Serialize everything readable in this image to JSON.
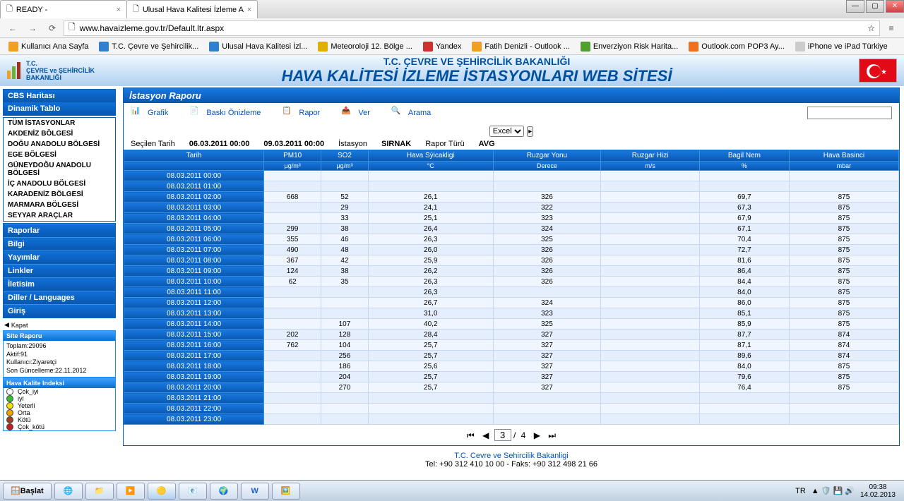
{
  "tabs": [
    {
      "title": "READY -"
    },
    {
      "title": "Ulusal Hava Kalitesi İzleme A"
    }
  ],
  "url": "www.havaizleme.gov.tr/Default.ltr.aspx",
  "bookmarks": [
    {
      "label": "Kullanıcı Ana Sayfa",
      "color": "#f0a020"
    },
    {
      "label": "T.C. Çevre ve Şehircilik...",
      "color": "#3080d0"
    },
    {
      "label": "Ulusal Hava Kalitesi İzl...",
      "color": "#3080d0"
    },
    {
      "label": "Meteoroloji 12. Bölge ...",
      "color": "#e0b000"
    },
    {
      "label": "Yandex",
      "color": "#d03030"
    },
    {
      "label": "Fatih Denizli - Outlook ...",
      "color": "#f0a020"
    },
    {
      "label": "Enverziyon Risk Harita...",
      "color": "#50a030"
    },
    {
      "label": "Outlook.com POP3 Ay...",
      "color": "#f07020"
    },
    {
      "label": "iPhone ve iPad Türkiye",
      "color": "#ccc"
    }
  ],
  "header": {
    "line1": "T.C. ÇEVRE VE ŞEHİRCİLİK BAKANLIĞI",
    "line2": "HAVA KALİTESİ İZLEME İSTASYONLARI WEB SİTESİ",
    "logo_text": "T.C.\nÇEVRE ve ŞEHİRCİLİK\nBAKANLIĞI"
  },
  "sidebar": {
    "blue1": [
      "CBS Haritası",
      "Dinamik Tablo"
    ],
    "white1": [
      "TÜM İSTASYONLAR",
      "AKDENİZ BÖLGESİ",
      "DOĞU ANADOLU BÖLGESİ",
      "EGE BÖLGESİ",
      "GÜNEYDOĞU ANADOLU BÖLGESİ",
      "İÇ ANADOLU BÖLGESİ",
      "KARADENİZ BÖLGESİ",
      "MARMARA BÖLGESİ",
      "SEYYAR ARAÇLAR"
    ],
    "blue2": [
      "Raporlar",
      "Bilgi",
      "Yayımlar",
      "Linkler",
      "İletisim",
      "Diller / Languages",
      "Giriş"
    ],
    "kapat": "Kapat",
    "report_h": "Site Raporu",
    "report_b": [
      "Toplam:29096",
      "Aktif:91",
      "Kullanıcı:Ziyaretçi",
      "Son Güncelleme:22.11.2012"
    ],
    "legend_h": "Hava Kalite Indeksi",
    "legend": [
      {
        "label": "Çok_iyi",
        "color": "#ffffff"
      },
      {
        "label": "iyi",
        "color": "#30c030"
      },
      {
        "label": "Yeterli",
        "color": "#f0e000"
      },
      {
        "label": "Orta",
        "color": "#f0a000"
      },
      {
        "label": "Kötü",
        "color": "#a04020"
      },
      {
        "label": "Çok_kötü",
        "color": "#c02020"
      }
    ]
  },
  "panel": {
    "title": "İstasyon Raporu",
    "toolbar": {
      "grafik": "Grafik",
      "baski": "Baskı Önizleme",
      "rapor": "Rapor",
      "ver": "Ver",
      "arama": "Arama",
      "export": "Excel"
    },
    "params": {
      "secilen_label": "Seçilen Tarih",
      "d1": "06.03.2011 00:00",
      "d2": "09.03.2011 00:00",
      "istasyon_label": "İstasyon",
      "istasyon": "SIRNAK",
      "rapor_label": "Rapor Türü",
      "rapor": "AVG"
    },
    "columns": [
      {
        "h": "Tarih",
        "u": ""
      },
      {
        "h": "PM10",
        "u": "µg/m³"
      },
      {
        "h": "SO2",
        "u": "µg/m³"
      },
      {
        "h": "Hava Sýicakligi",
        "u": "°C"
      },
      {
        "h": "Ruzgar Yonu",
        "u": "Derece"
      },
      {
        "h": "Ruzgar Hizi",
        "u": "m/s"
      },
      {
        "h": "Bagil Nem",
        "u": "%"
      },
      {
        "h": "Hava Basinci",
        "u": "mbar"
      }
    ],
    "rows": [
      [
        "08.03.2011 00:00",
        "",
        "",
        "",
        "",
        "",
        "",
        ""
      ],
      [
        "08.03.2011 01:00",
        "",
        "",
        "",
        "",
        "",
        "",
        ""
      ],
      [
        "08.03.2011 02:00",
        "668",
        "52",
        "26,1",
        "326",
        "",
        "69,7",
        "875"
      ],
      [
        "08.03.2011 03:00",
        "",
        "29",
        "24,1",
        "322",
        "",
        "67,3",
        "875"
      ],
      [
        "08.03.2011 04:00",
        "",
        "33",
        "25,1",
        "323",
        "",
        "67,9",
        "875"
      ],
      [
        "08.03.2011 05:00",
        "299",
        "38",
        "26,4",
        "324",
        "",
        "67,1",
        "875"
      ],
      [
        "08.03.2011 06:00",
        "355",
        "46",
        "26,3",
        "325",
        "",
        "70,4",
        "875"
      ],
      [
        "08.03.2011 07:00",
        "490",
        "48",
        "26,0",
        "326",
        "",
        "72,7",
        "875"
      ],
      [
        "08.03.2011 08:00",
        "367",
        "42",
        "25,9",
        "326",
        "",
        "81,6",
        "875"
      ],
      [
        "08.03.2011 09:00",
        "124",
        "38",
        "26,2",
        "326",
        "",
        "86,4",
        "875"
      ],
      [
        "08.03.2011 10:00",
        "62",
        "35",
        "26,3",
        "326",
        "",
        "84,4",
        "875"
      ],
      [
        "08.03.2011 11:00",
        "",
        "",
        "26,3",
        "",
        "",
        "84,0",
        "875"
      ],
      [
        "08.03.2011 12:00",
        "",
        "",
        "26,7",
        "324",
        "",
        "86,0",
        "875"
      ],
      [
        "08.03.2011 13:00",
        "",
        "",
        "31,0",
        "323",
        "",
        "85,1",
        "875"
      ],
      [
        "08.03.2011 14:00",
        "",
        "107",
        "40,2",
        "325",
        "",
        "85,9",
        "875"
      ],
      [
        "08.03.2011 15:00",
        "202",
        "128",
        "28,4",
        "327",
        "",
        "87,7",
        "874"
      ],
      [
        "08.03.2011 16:00",
        "762",
        "104",
        "25,7",
        "327",
        "",
        "87,1",
        "874"
      ],
      [
        "08.03.2011 17:00",
        "",
        "256",
        "25,7",
        "327",
        "",
        "89,6",
        "874"
      ],
      [
        "08.03.2011 18:00",
        "",
        "186",
        "25,6",
        "327",
        "",
        "84,0",
        "875"
      ],
      [
        "08.03.2011 19:00",
        "",
        "204",
        "25,7",
        "327",
        "",
        "79,6",
        "875"
      ],
      [
        "08.03.2011 20:00",
        "",
        "270",
        "25,7",
        "327",
        "",
        "76,4",
        "875"
      ],
      [
        "08.03.2011 21:00",
        "",
        "",
        "",
        "",
        "",
        "",
        ""
      ],
      [
        "08.03.2011 22:00",
        "",
        "",
        "",
        "",
        "",
        "",
        ""
      ],
      [
        "08.03.2011 23:00",
        "",
        "",
        "",
        "",
        "",
        "",
        ""
      ]
    ],
    "pager": {
      "current": "3",
      "total": "4"
    },
    "footer1": "T.C. Cevre ve Sehircilik Bakanligi",
    "footer2": "Tel: +90 312 410 10 00 - Faks: +90 312 498 21 66"
  },
  "taskbar": {
    "start": "Başlat",
    "lang": "TR",
    "time": "09:38",
    "date": "14.02.2013"
  }
}
